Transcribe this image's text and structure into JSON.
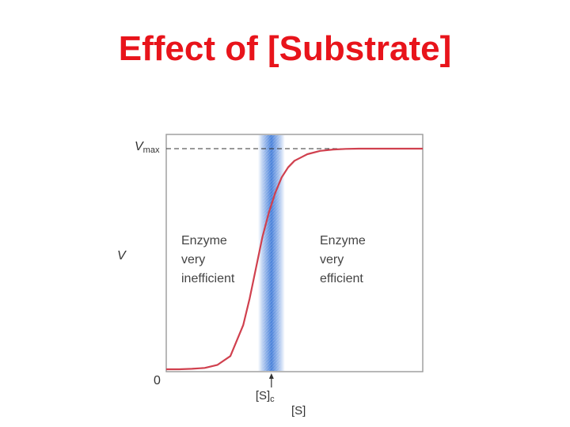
{
  "slide": {
    "title": "Effect of [Substrate]"
  },
  "chart_data": {
    "type": "line",
    "title": "Effect of [Substrate]",
    "xlabel": "[S]",
    "ylabel": "V",
    "xlim": [
      0,
      10
    ],
    "ylim": [
      0,
      1
    ],
    "y_ticks": [
      {
        "value": 0,
        "label": "0"
      }
    ],
    "vmax": {
      "value": 1,
      "label_main": "V",
      "label_sub": "max",
      "style": "dashed"
    },
    "critical_concentration": {
      "value": 4.1,
      "label_main": "[S]",
      "label_sub": "c",
      "band": "blue shaded"
    },
    "series": [
      {
        "color": "#d0404e",
        "x": [
          0,
          0.5,
          1,
          1.5,
          2,
          2.5,
          3,
          3.25,
          3.5,
          3.75,
          4,
          4.25,
          4.5,
          4.75,
          5,
          5.5,
          6,
          6.5,
          7,
          7.5,
          8,
          9,
          10
        ],
        "y": [
          0,
          0,
          0.002,
          0.006,
          0.02,
          0.06,
          0.2,
          0.32,
          0.46,
          0.6,
          0.71,
          0.8,
          0.87,
          0.915,
          0.945,
          0.975,
          0.99,
          0.996,
          0.999,
          1,
          1,
          1,
          1
        ]
      }
    ],
    "annotations": [
      {
        "lines": [
          "Enzyme",
          "very",
          "inefficient"
        ],
        "position": "left of band"
      },
      {
        "lines": [
          "Enzyme",
          "very",
          "efficient"
        ],
        "position": "right of band"
      }
    ],
    "grid": false,
    "legend": "none"
  },
  "colors": {
    "title": "#e8141b",
    "curve": "#d0404e",
    "band": "#3f7ad8",
    "frame": "#9a9a9a",
    "dashed": "#333333"
  }
}
